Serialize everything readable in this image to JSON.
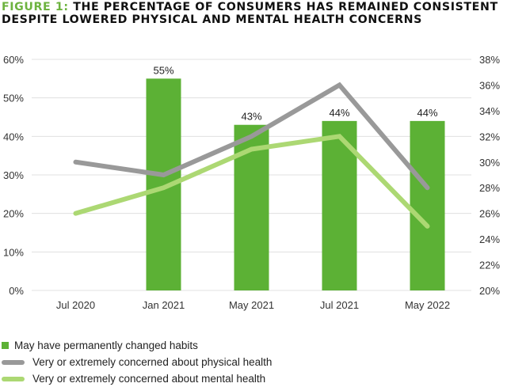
{
  "title": {
    "prefix": "FIGURE 1:",
    "line1": "THE PERCENTAGE OF CONSUMERS HAS REMAINED CONSISTENT",
    "line2": "DESPITE LOWERED PHYSICAL AND MENTAL HEALTH CONCERNS"
  },
  "colors": {
    "bar": "#5cb135",
    "physical": "#999999",
    "mental": "#acd873",
    "title_accent": "#6db33f",
    "grid": "#e0e0e0"
  },
  "chart_data": {
    "type": "bar",
    "title": "FIGURE 1: THE PERCENTAGE OF CONSUMERS HAS REMAINED CONSISTENT DESPITE LOWERED PHYSICAL AND MENTAL HEALTH CONCERNS",
    "categories": [
      "Jul 2020",
      "Jan 2021",
      "May 2021",
      "Jul 2021",
      "May 2022"
    ],
    "xlabel": "",
    "y_left": {
      "label": "",
      "range": [
        0,
        60
      ],
      "ticks": [
        0,
        10,
        20,
        30,
        40,
        50,
        60
      ],
      "tick_labels": [
        "0%",
        "10%",
        "20%",
        "30%",
        "40%",
        "50%",
        "60%"
      ]
    },
    "y_right": {
      "label": "",
      "range": [
        20,
        38
      ],
      "ticks": [
        20,
        22,
        24,
        26,
        28,
        30,
        32,
        34,
        36,
        38
      ],
      "tick_labels": [
        "20%",
        "22%",
        "24%",
        "26%",
        "28%",
        "30%",
        "32%",
        "34%",
        "36%",
        "38%"
      ]
    },
    "grid": true,
    "legend_position": "bottom-left",
    "series": [
      {
        "name": "May have permanently changed habits",
        "type": "bar",
        "axis": "left",
        "values": [
          null,
          55,
          43,
          44,
          44
        ],
        "data_labels": [
          null,
          "55%",
          "43%",
          "44%",
          "44%"
        ]
      },
      {
        "name": "Very or extremely concerned about physical health",
        "type": "line",
        "axis": "right",
        "values": [
          30,
          29,
          32,
          36,
          28
        ]
      },
      {
        "name": "Very or extremely concerned about mental health",
        "type": "line",
        "axis": "right",
        "values": [
          26,
          28,
          31,
          32,
          25
        ]
      }
    ]
  }
}
